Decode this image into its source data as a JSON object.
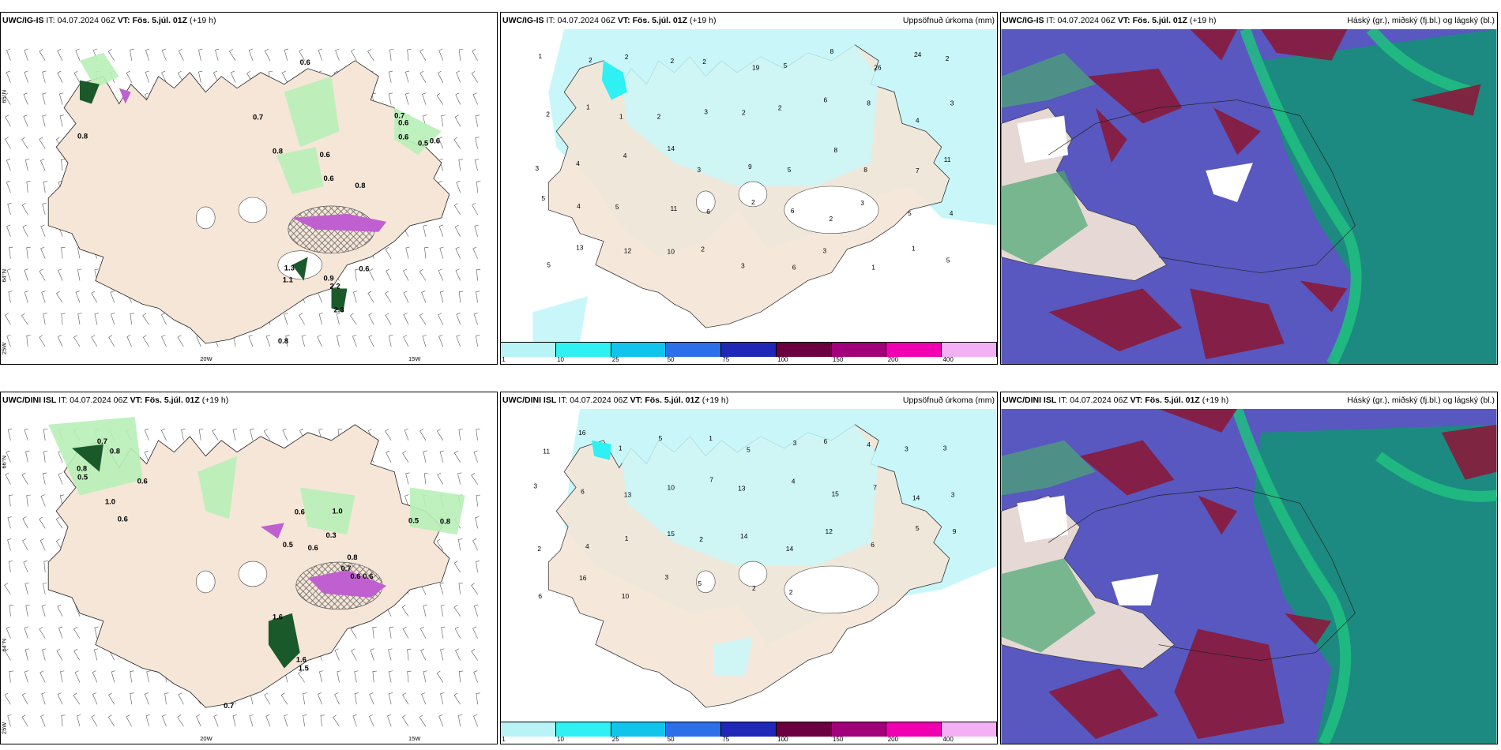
{
  "panels": [
    {
      "model": "UWC/IG-IS",
      "it_label": "IT:",
      "it": "04.07.2024 06Z",
      "vt_label": "VT:",
      "vt": "Fös. 5.júl. 01Z",
      "lead": "(+19 h)",
      "right": ""
    },
    {
      "model": "UWC/IG-IS",
      "it_label": "IT:",
      "it": "04.07.2024 06Z",
      "vt_label": "VT:",
      "vt": "Fös. 5.júl. 01Z",
      "lead": "(+19 h)",
      "right": "Uppsöfnuð úrkoma (mm)"
    },
    {
      "model": "UWC/IG-IS",
      "it_label": "IT:",
      "it": "04.07.2024 06Z",
      "vt_label": "VT:",
      "vt": "Fös. 5.júl. 01Z",
      "lead": "(+19 h)",
      "right": "Háský (gr.), miðský (fj.bl.) og lágský (bl.)"
    },
    {
      "model": "UWC/DINI ISL",
      "it_label": "IT:",
      "it": "04.07.2024 06Z",
      "vt_label": "VT:",
      "vt": "Fös. 5.júl. 01Z",
      "lead": "(+19 h)",
      "right": ""
    },
    {
      "model": "UWC/DINI ISL",
      "it_label": "IT:",
      "it": "04.07.2024 06Z",
      "vt_label": "VT:",
      "vt": "Fös. 5.júl. 01Z",
      "lead": "(+19 h)",
      "right": "Uppsöfnuð úrkoma (mm)"
    },
    {
      "model": "UWC/DINI ISL",
      "it_label": "IT:",
      "it": "04.07.2024 06Z",
      "vt_label": "VT:",
      "vt": "Fös. 5.júl. 01Z",
      "lead": "(+19 h)",
      "right": "Háský (gr.), miðský (fj.bl.) og lágský (bl.)"
    }
  ],
  "legend": {
    "ticks": [
      "1",
      "10",
      "25",
      "50",
      "75",
      "100",
      "150",
      "200",
      "400"
    ],
    "colors": [
      "#b8f4f6",
      "#2ff0f2",
      "#10c4ec",
      "#2c6fe8",
      "#2028b8",
      "#6a0040",
      "#a2007a",
      "#f000b0",
      "#f4b0f4"
    ]
  },
  "axes": {
    "lat_65": "65°N",
    "lat_66": "66°N",
    "lat_64": "64°N",
    "lon_25w": "25W",
    "lon_20w": "20W",
    "lon_15w": "15W"
  },
  "wind_values": {
    "top": [
      "0.6",
      "0.7",
      "0.8",
      "0.8",
      "0.7",
      "0.6",
      "0.5",
      "0.6",
      "0.6",
      "0.8",
      "0.6",
      "0.6",
      "1.3",
      "1.1",
      "0.9",
      "2.2",
      "2.3",
      "0.6",
      "0.8"
    ],
    "bottom": [
      "0.7",
      "0.8",
      "0.8",
      "0.5",
      "0.6",
      "0.6",
      "1.0",
      "0.6",
      "0.5",
      "1.0",
      "0.3",
      "0.6",
      "0.8",
      "0.6",
      "0.5",
      "0.8",
      "0.7",
      "0.6",
      "1.6",
      "1.6",
      "1.5",
      "0.7"
    ]
  },
  "precip_values": {
    "top": [
      "1",
      "2",
      "2",
      "2",
      "2",
      "19",
      "5",
      "8",
      "26",
      "24",
      "2",
      "2",
      "1",
      "1",
      "2",
      "3",
      "2",
      "2",
      "6",
      "8",
      "4",
      "3",
      "3",
      "4",
      "4",
      "14",
      "3",
      "9",
      "5",
      "8",
      "8",
      "7",
      "11",
      "5",
      "4",
      "5",
      "11",
      "6",
      "2",
      "6",
      "2",
      "3",
      "5",
      "4",
      "5",
      "13",
      "12",
      "10",
      "2",
      "3",
      "6",
      "3",
      "1",
      "1",
      "5"
    ],
    "bottom": [
      "11",
      "16",
      "1",
      "5",
      "1",
      "5",
      "3",
      "6",
      "4",
      "3",
      "3",
      "3",
      "6",
      "13",
      "10",
      "7",
      "13",
      "4",
      "15",
      "7",
      "14",
      "3",
      "2",
      "4",
      "1",
      "15",
      "2",
      "14",
      "14",
      "12",
      "6",
      "5",
      "9",
      "6",
      "16",
      "10",
      "3",
      "5",
      "2",
      "2"
    ]
  },
  "colors": {
    "land": "#f5e6d8",
    "ocean": "#ffffff",
    "coast": "#222222",
    "precip_light": "#c9f7f9",
    "precip_green": "#b8f0b8",
    "precip_dark": "#1a5a2a",
    "magenta": "#c060d0",
    "cloud_high": "#1c8a80",
    "cloud_mid": "#5858c0",
    "cloud_low": "#8a1a3a",
    "cloud_green": "#20c080"
  }
}
